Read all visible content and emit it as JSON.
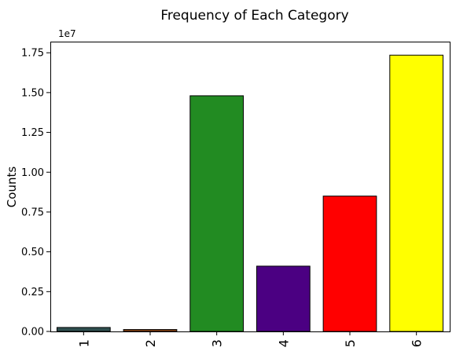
{
  "chart_data": {
    "type": "bar",
    "title": "Frequency of Each Category",
    "xlabel": "",
    "ylabel": "Counts",
    "categories": [
      "1",
      "2",
      "3",
      "4",
      "5",
      "6"
    ],
    "values": [
      250000,
      120000,
      14800000,
      4100000,
      8500000,
      17350000
    ],
    "colors": [
      "#2f4f4f",
      "#8b4513",
      "#228b22",
      "#4b0082",
      "#ff0000",
      "#ffff00"
    ],
    "edge_color": "#000000",
    "ylim": [
      0,
      18200000
    ],
    "y_ticks": [
      0,
      2500000,
      5000000,
      7500000,
      10000000,
      12500000,
      15000000,
      17500000
    ],
    "y_tick_labels": [
      "0.00",
      "0.25",
      "0.50",
      "0.75",
      "1.00",
      "1.25",
      "1.50",
      "1.75"
    ],
    "y_offset_label": "1e7",
    "grid": false,
    "x_tick_rotation_deg": 90
  }
}
